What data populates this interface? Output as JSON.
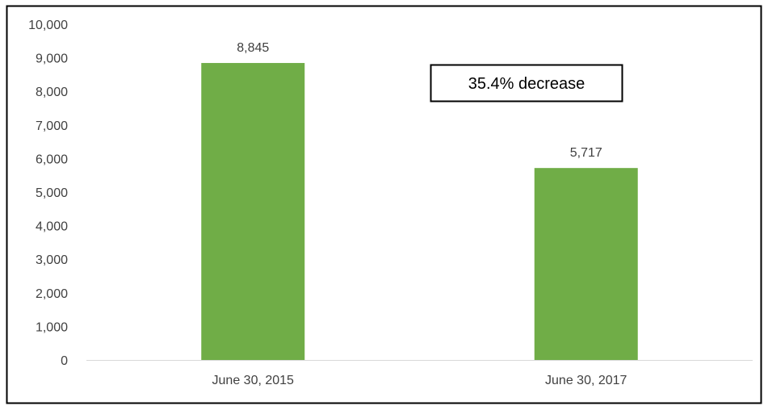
{
  "chart_data": {
    "type": "bar",
    "categories": [
      "June 30, 2015",
      "June 30, 2017"
    ],
    "values": [
      8845,
      5717
    ],
    "data_labels": [
      "8,845",
      "5,717"
    ],
    "ylim": [
      0,
      10000
    ],
    "y_ticks": [
      0,
      1000,
      2000,
      3000,
      4000,
      5000,
      6000,
      7000,
      8000,
      9000,
      10000
    ],
    "y_tick_labels": [
      "0",
      "1,000",
      "2,000",
      "3,000",
      "4,000",
      "5,000",
      "6,000",
      "7,000",
      "8,000",
      "9,000",
      "10,000"
    ],
    "grid": false,
    "legend": "none",
    "bar_color": "#70AD47",
    "annotation": "35.4% decrease"
  }
}
